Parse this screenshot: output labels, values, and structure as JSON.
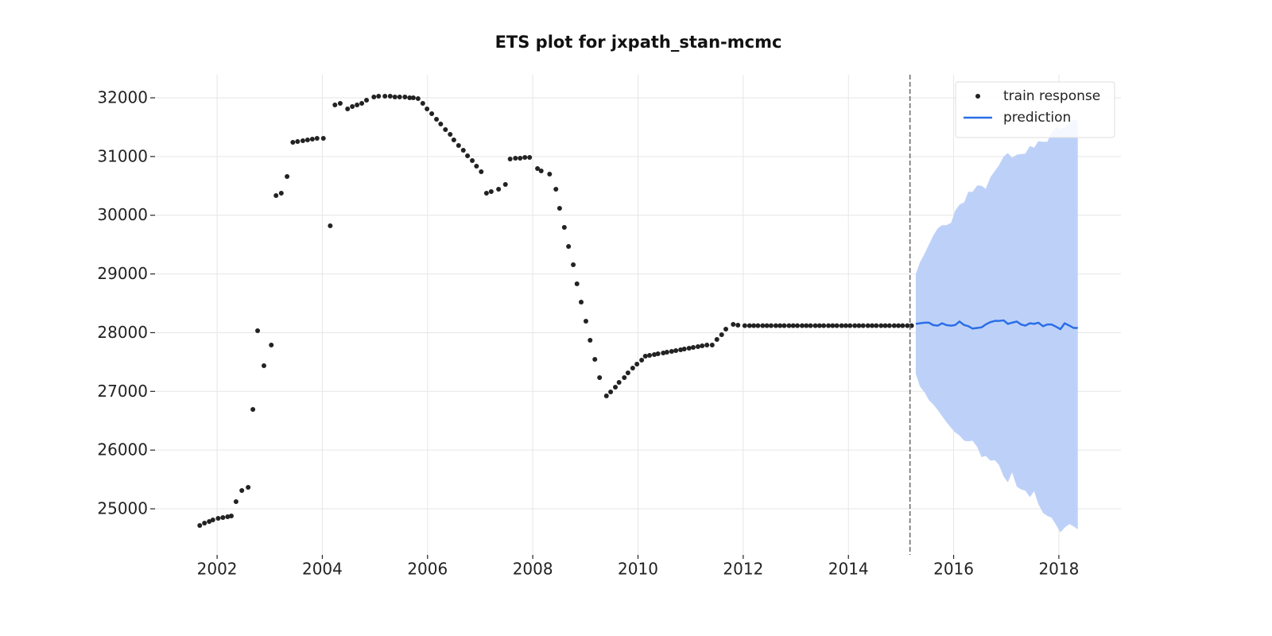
{
  "chart_data": {
    "type": "line",
    "title": "ETS plot for jxpath_stan-mcmc",
    "xlim": [
      2000.82,
      2019.18
    ],
    "xticks": [
      2002,
      2004,
      2006,
      2008,
      2010,
      2012,
      2014,
      2016,
      2018
    ],
    "ylim": [
      24215,
      32393
    ],
    "yticks": [
      25000,
      26000,
      27000,
      28000,
      29000,
      30000,
      31000,
      32000
    ],
    "grid": true,
    "legend": "upper right",
    "train_end": 2015.17,
    "series": [
      {
        "name": "train response",
        "type": "scatter",
        "color": "#222222",
        "x": [
          2001.67,
          2001.76,
          2001.85,
          2001.92,
          2002.02,
          2002.11,
          2002.2,
          2002.27,
          2002.36,
          2002.47,
          2002.59,
          2002.68,
          2002.77,
          2002.89,
          2003.03,
          2003.12,
          2003.22,
          2003.33,
          2003.44,
          2003.53,
          2003.63,
          2003.72,
          2003.81,
          2003.9,
          2004.02,
          2004.15,
          2004.24,
          2004.34,
          2004.48,
          2004.57,
          2004.66,
          2004.75,
          2004.84,
          2004.98,
          2005.07,
          2005.19,
          2005.29,
          2005.38,
          2005.47,
          2005.57,
          2005.66,
          2005.73,
          2005.82,
          2005.91,
          2005.99,
          2006.08,
          2006.17,
          2006.25,
          2006.34,
          2006.43,
          2006.5,
          2006.59,
          2006.68,
          2006.76,
          2006.85,
          2006.93,
          2007.02,
          2007.12,
          2007.21,
          2007.35,
          2007.48,
          2007.57,
          2007.67,
          2007.76,
          2007.85,
          2007.94,
          2008.09,
          2008.16,
          2008.32,
          2008.44,
          2008.51,
          2008.6,
          2008.68,
          2008.77,
          2008.84,
          2008.92,
          2009.01,
          2009.09,
          2009.18,
          2009.27,
          2009.4,
          2009.48,
          2009.57,
          2009.64,
          2009.74,
          2009.81,
          2009.9,
          2009.98,
          2010.07,
          2010.14,
          2010.22,
          2010.31,
          2010.38,
          2010.48,
          2010.55,
          2010.64,
          2010.72,
          2010.81,
          2010.88,
          2010.97,
          2011.05,
          2011.14,
          2011.22,
          2011.31,
          2011.41,
          2011.5,
          2011.59,
          2011.67,
          2011.81,
          2011.9,
          2012.03,
          2012.12,
          2012.2,
          2012.28,
          2012.37,
          2012.45,
          2012.53,
          2012.62,
          2012.7,
          2012.78,
          2012.87,
          2012.95,
          2013.03,
          2013.12,
          2013.2,
          2013.28,
          2013.37,
          2013.45,
          2013.53,
          2013.62,
          2013.7,
          2013.78,
          2013.87,
          2013.95,
          2014.03,
          2014.12,
          2014.2,
          2014.28,
          2014.37,
          2014.45,
          2014.53,
          2014.62,
          2014.7,
          2014.78,
          2014.87,
          2014.95,
          2015.03,
          2015.12,
          2015.2
        ],
        "values": [
          24716,
          24757,
          24784,
          24811,
          24838,
          24852,
          24865,
          24879,
          25122,
          25312,
          25366,
          26693,
          28033,
          27437,
          27789,
          30335,
          30375,
          30660,
          31242,
          31255,
          31269,
          31282,
          31296,
          31310,
          31310,
          29820,
          31878,
          31905,
          31810,
          31851,
          31878,
          31905,
          31959,
          32014,
          32027,
          32027,
          32027,
          32014,
          32014,
          32014,
          32000,
          32000,
          31986,
          31905,
          31810,
          31729,
          31634,
          31553,
          31458,
          31377,
          31282,
          31188,
          31106,
          31012,
          30930,
          30836,
          30741,
          30375,
          30402,
          30443,
          30524,
          30957,
          30971,
          30971,
          30985,
          30985,
          30795,
          30754,
          30700,
          30443,
          30118,
          29793,
          29468,
          29157,
          28832,
          28520,
          28196,
          27871,
          27546,
          27234,
          26923,
          26990,
          27072,
          27153,
          27234,
          27315,
          27397,
          27464,
          27532,
          27600,
          27613,
          27627,
          27640,
          27654,
          27667,
          27681,
          27695,
          27708,
          27722,
          27735,
          27749,
          27762,
          27776,
          27789,
          27789,
          27884,
          27965,
          28060,
          28141,
          28128,
          28120,
          28120,
          28120,
          28120,
          28120,
          28120,
          28120,
          28120,
          28120,
          28120,
          28120,
          28120,
          28120,
          28120,
          28120,
          28120,
          28120,
          28120,
          28120,
          28120,
          28120,
          28120,
          28120,
          28120,
          28120,
          28120,
          28120,
          28120,
          28120,
          28120,
          28120,
          28120,
          28120,
          28120,
          28120,
          28120,
          28120,
          28120,
          28120
        ]
      },
      {
        "name": "prediction",
        "color": "#2a6ee8",
        "band_color": "#bdd1f8",
        "x": [
          2015.28,
          2015.36,
          2015.45,
          2015.53,
          2015.61,
          2015.7,
          2015.78,
          2015.86,
          2015.95,
          2016.03,
          2016.11,
          2016.2,
          2016.28,
          2016.36,
          2016.45,
          2016.53,
          2016.61,
          2016.7,
          2016.78,
          2016.86,
          2016.95,
          2017.03,
          2017.11,
          2017.2,
          2017.28,
          2017.36,
          2017.45,
          2017.53,
          2017.61,
          2017.7,
          2017.78,
          2017.86,
          2017.95,
          2018.03,
          2018.11,
          2018.2,
          2018.28,
          2018.36
        ],
        "values": [
          28150,
          28160,
          28170,
          28170,
          28130,
          28120,
          28160,
          28130,
          28120,
          28130,
          28190,
          28130,
          28110,
          28070,
          28080,
          28090,
          28140,
          28180,
          28200,
          28200,
          28210,
          28150,
          28170,
          28190,
          28140,
          28120,
          28160,
          28150,
          28170,
          28110,
          28140,
          28140,
          28100,
          28060,
          28160,
          28120,
          28080,
          28080
        ],
        "upper": [
          29000,
          29200,
          29350,
          29500,
          29650,
          29780,
          29830,
          29830,
          29870,
          30080,
          30180,
          30220,
          30400,
          30400,
          30510,
          30500,
          30450,
          30650,
          30750,
          30850,
          31000,
          31060,
          30980,
          31030,
          31040,
          31050,
          31180,
          31150,
          31260,
          31250,
          31250,
          31400,
          31500,
          31470,
          31500,
          31560,
          31640,
          31600
        ],
        "lower": [
          27300,
          27080,
          26980,
          26850,
          26780,
          26680,
          26580,
          26480,
          26380,
          26300,
          26250,
          26160,
          26150,
          26160,
          26050,
          25880,
          25900,
          25820,
          25830,
          25750,
          25550,
          25450,
          25620,
          25380,
          25330,
          25310,
          25200,
          25300,
          25080,
          24930,
          24880,
          24850,
          24720,
          24600,
          24680,
          24740,
          24700,
          24650
        ]
      }
    ]
  }
}
